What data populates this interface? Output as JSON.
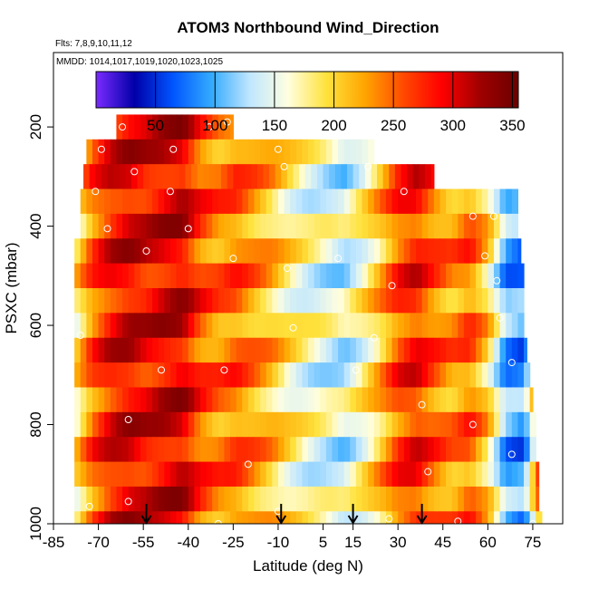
{
  "chart_data": {
    "type": "heatmap",
    "title": "ATOM3 Northbound Wind_Direction",
    "subtitle_flights": "Flts: 7,8,9,10,11,12",
    "subtitle_dates": "MMDD: 1014,1017,1019,1020,1023,1025",
    "xlabel": "Latitude (deg N)",
    "ylabel": "PSXC (mbar)",
    "xlim": [
      -85,
      85
    ],
    "ylim": [
      1000,
      50
    ],
    "y_reversed": true,
    "x_ticks": [
      -85,
      -70,
      -55,
      -40,
      -25,
      -10,
      5,
      15,
      30,
      45,
      60,
      75
    ],
    "y_ticks": [
      200,
      400,
      600,
      800,
      1000
    ],
    "colorbar": {
      "ticks": [
        50,
        100,
        150,
        200,
        250,
        300,
        350
      ],
      "range": [
        0,
        355
      ],
      "colors": [
        "#7b2bff",
        "#0000a8",
        "#0055ff",
        "#33aaff",
        "#bfe6ff",
        "#ffffe0",
        "#ffe23d",
        "#ffa500",
        "#ff4a00",
        "#ff0000",
        "#a00000",
        "#6a0000"
      ]
    },
    "pressure_levels": [
      200,
      250,
      300,
      350,
      400,
      450,
      500,
      550,
      600,
      650,
      700,
      750,
      800,
      850,
      900,
      950,
      1000
    ],
    "coverage": [
      {
        "p_top": 175,
        "p_bottom": 225,
        "lat_min": -64,
        "lat_max": -25
      },
      {
        "p_top": 225,
        "p_bottom": 275,
        "lat_min": -74,
        "lat_max": 22
      },
      {
        "p_top": 275,
        "p_bottom": 325,
        "lat_min": -75,
        "lat_max": 42
      },
      {
        "p_top": 325,
        "p_bottom": 375,
        "lat_min": -76,
        "lat_max": 70
      },
      {
        "p_top": 375,
        "p_bottom": 425,
        "lat_min": -76,
        "lat_max": 70
      },
      {
        "p_top": 425,
        "p_bottom": 475,
        "lat_min": -78,
        "lat_max": 71
      },
      {
        "p_top": 475,
        "p_bottom": 525,
        "lat_min": -78,
        "lat_max": 72
      },
      {
        "p_top": 525,
        "p_bottom": 575,
        "lat_min": -78,
        "lat_max": 72
      },
      {
        "p_top": 575,
        "p_bottom": 625,
        "lat_min": -78,
        "lat_max": 72
      },
      {
        "p_top": 625,
        "p_bottom": 675,
        "lat_min": -78,
        "lat_max": 73
      },
      {
        "p_top": 675,
        "p_bottom": 725,
        "lat_min": -78,
        "lat_max": 74
      },
      {
        "p_top": 725,
        "p_bottom": 775,
        "lat_min": -78,
        "lat_max": 75
      },
      {
        "p_top": 775,
        "p_bottom": 825,
        "lat_min": -78,
        "lat_max": 76
      },
      {
        "p_top": 825,
        "p_bottom": 875,
        "lat_min": -78,
        "lat_max": 76
      },
      {
        "p_top": 875,
        "p_bottom": 925,
        "lat_min": -78,
        "lat_max": 77
      },
      {
        "p_top": 925,
        "p_bottom": 975,
        "lat_min": -78,
        "lat_max": 77
      },
      {
        "p_top": 975,
        "p_bottom": 1010,
        "lat_min": -78,
        "lat_max": 78
      }
    ],
    "profile_markers_lat": [
      -54,
      -9,
      15,
      38
    ],
    "observation_points": [
      {
        "lat": -62,
        "p": 200
      },
      {
        "lat": -33,
        "p": 200
      },
      {
        "lat": -27,
        "p": 190
      },
      {
        "lat": -69,
        "p": 245
      },
      {
        "lat": -45,
        "p": 245
      },
      {
        "lat": -10,
        "p": 245
      },
      {
        "lat": -58,
        "p": 290
      },
      {
        "lat": -8,
        "p": 280
      },
      {
        "lat": 20,
        "p": 280
      },
      {
        "lat": -71,
        "p": 330
      },
      {
        "lat": -46,
        "p": 330
      },
      {
        "lat": 32,
        "p": 330
      },
      {
        "lat": -67,
        "p": 405
      },
      {
        "lat": -40,
        "p": 405
      },
      {
        "lat": 55,
        "p": 380
      },
      {
        "lat": 62,
        "p": 380
      },
      {
        "lat": -54,
        "p": 450
      },
      {
        "lat": -25,
        "p": 465
      },
      {
        "lat": 10,
        "p": 465
      },
      {
        "lat": 59,
        "p": 460
      },
      {
        "lat": -7,
        "p": 485
      },
      {
        "lat": 28,
        "p": 520
      },
      {
        "lat": 63,
        "p": 510
      },
      {
        "lat": -76,
        "p": 620
      },
      {
        "lat": -5,
        "p": 605
      },
      {
        "lat": 22,
        "p": 625
      },
      {
        "lat": 64,
        "p": 585
      },
      {
        "lat": -49,
        "p": 690
      },
      {
        "lat": -28,
        "p": 690
      },
      {
        "lat": 16,
        "p": 690
      },
      {
        "lat": 68,
        "p": 675
      },
      {
        "lat": -60,
        "p": 790
      },
      {
        "lat": 38,
        "p": 760
      },
      {
        "lat": 55,
        "p": 800
      },
      {
        "lat": -20,
        "p": 880
      },
      {
        "lat": 40,
        "p": 895
      },
      {
        "lat": 68,
        "p": 860
      },
      {
        "lat": -73,
        "p": 965
      },
      {
        "lat": -60,
        "p": 955
      },
      {
        "lat": -30,
        "p": 1000
      },
      {
        "lat": -10,
        "p": 975
      },
      {
        "lat": 27,
        "p": 990
      },
      {
        "lat": 50,
        "p": 995
      },
      {
        "lat": 75,
        "p": 1000
      }
    ],
    "latitude_bands": [
      {
        "lat": -78,
        "value": 180
      },
      {
        "lat": -72,
        "value": 250
      },
      {
        "lat": -66,
        "value": 285
      },
      {
        "lat": -60,
        "value": 300
      },
      {
        "lat": -54,
        "value": 290
      },
      {
        "lat": -48,
        "value": 300
      },
      {
        "lat": -42,
        "value": 305
      },
      {
        "lat": -36,
        "value": 260
      },
      {
        "lat": -30,
        "value": 240
      },
      {
        "lat": -24,
        "value": 250
      },
      {
        "lat": -18,
        "value": 230
      },
      {
        "lat": -12,
        "value": 210
      },
      {
        "lat": -6,
        "value": 180
      },
      {
        "lat": 0,
        "value": 160
      },
      {
        "lat": 6,
        "value": 150
      },
      {
        "lat": 12,
        "value": 140
      },
      {
        "lat": 18,
        "value": 170
      },
      {
        "lat": 24,
        "value": 210
      },
      {
        "lat": 30,
        "value": 260
      },
      {
        "lat": 36,
        "value": 280
      },
      {
        "lat": 42,
        "value": 250
      },
      {
        "lat": 48,
        "value": 230
      },
      {
        "lat": 54,
        "value": 250
      },
      {
        "lat": 60,
        "value": 200
      },
      {
        "lat": 66,
        "value": 100
      },
      {
        "lat": 72,
        "value": 90
      },
      {
        "lat": 78,
        "value": 260
      }
    ]
  }
}
